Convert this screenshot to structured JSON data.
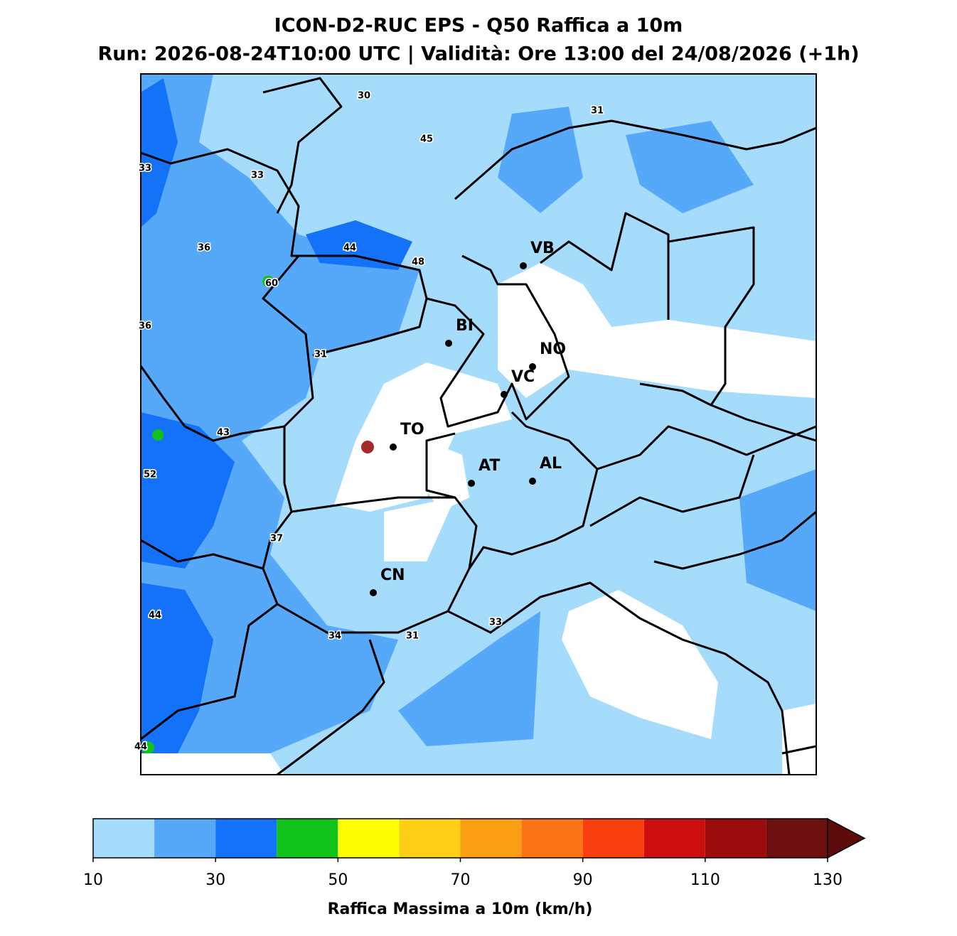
{
  "title": "ICON-D2-RUC EPS - Q50 Raffica a 10m",
  "subtitle": "Run: 2026-08-24T10:00 UTC | Validità: Ore 13:00 del 24/08/2026 (+1h)",
  "cities": [
    "VB",
    "BI",
    "NO",
    "VC",
    "TO",
    "AT",
    "AL",
    "CN"
  ],
  "contour_labels": [
    30,
    31,
    45,
    33,
    33,
    36,
    44,
    48,
    60,
    36,
    31,
    43,
    52,
    37,
    44,
    34,
    31,
    33,
    44
  ],
  "colorbar": {
    "label": "Raffica Massima a 10m (km/h)",
    "bounds": [
      10,
      20,
      30,
      40,
      50,
      60,
      70,
      80,
      90,
      100,
      110,
      120,
      130
    ],
    "colors": [
      "#a5dbfb",
      "#56a8f9",
      "#1372f7",
      "#11c21a",
      "#ffff00",
      "#fdd017",
      "#fba014",
      "#fb7314",
      "#fa3f0e",
      "#cc0e0e",
      "#9b0d0d",
      "#6e0f0f"
    ],
    "over_color": "#5c0a0a",
    "ticks": [
      10,
      30,
      50,
      70,
      90,
      110,
      130
    ]
  }
}
